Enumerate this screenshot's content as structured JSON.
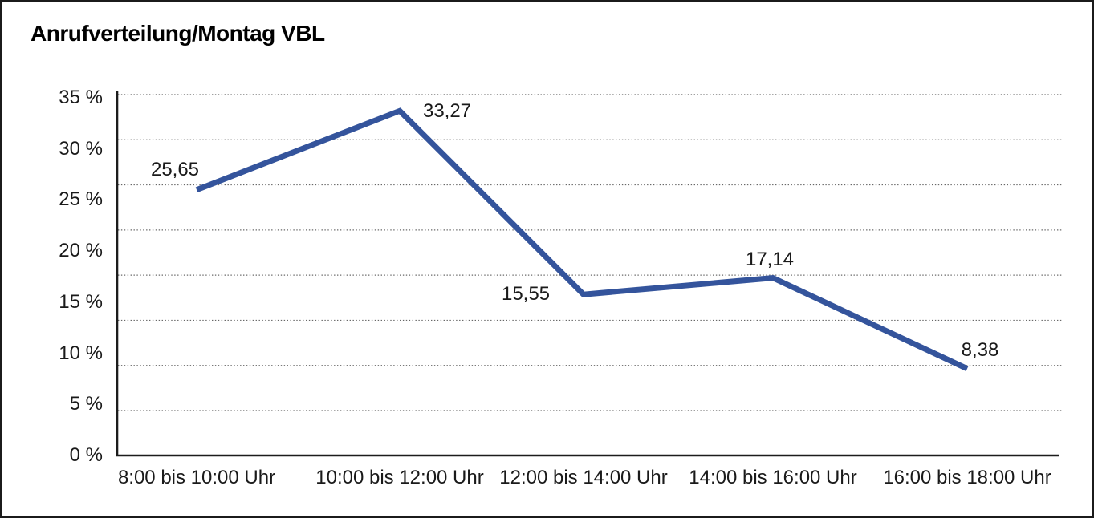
{
  "chart_data": {
    "type": "line",
    "title": "Anrufverteilung/Montag VBL",
    "categories": [
      "8:00 bis 10:00 Uhr",
      "10:00 bis 12:00 Uhr",
      "12:00 bis 14:00 Uhr",
      "14:00 bis 16:00 Uhr",
      "16:00 bis 18:00 Uhr"
    ],
    "values": [
      25.65,
      33.27,
      15.55,
      17.14,
      8.38
    ],
    "data_labels": [
      "25,65",
      "33,27",
      "15,55",
      "17,14",
      "8,38"
    ],
    "y_tick_labels": [
      "35 %",
      "30 %",
      "25 %",
      "20 %",
      "15 %",
      "10 %",
      "5 %",
      "0 %"
    ],
    "ylim": [
      0,
      35
    ],
    "y_tick_step": 5,
    "xlabel": "",
    "ylabel": "",
    "legend": "none",
    "grid": "horizontal-dotted",
    "line_color": "#34549C"
  },
  "colors": {
    "line": "#34549C",
    "axis": "#1c1c1c",
    "grid": "#686868",
    "background": "#ffffff",
    "text": "#111111",
    "frame_border": "#1b1b1b"
  }
}
